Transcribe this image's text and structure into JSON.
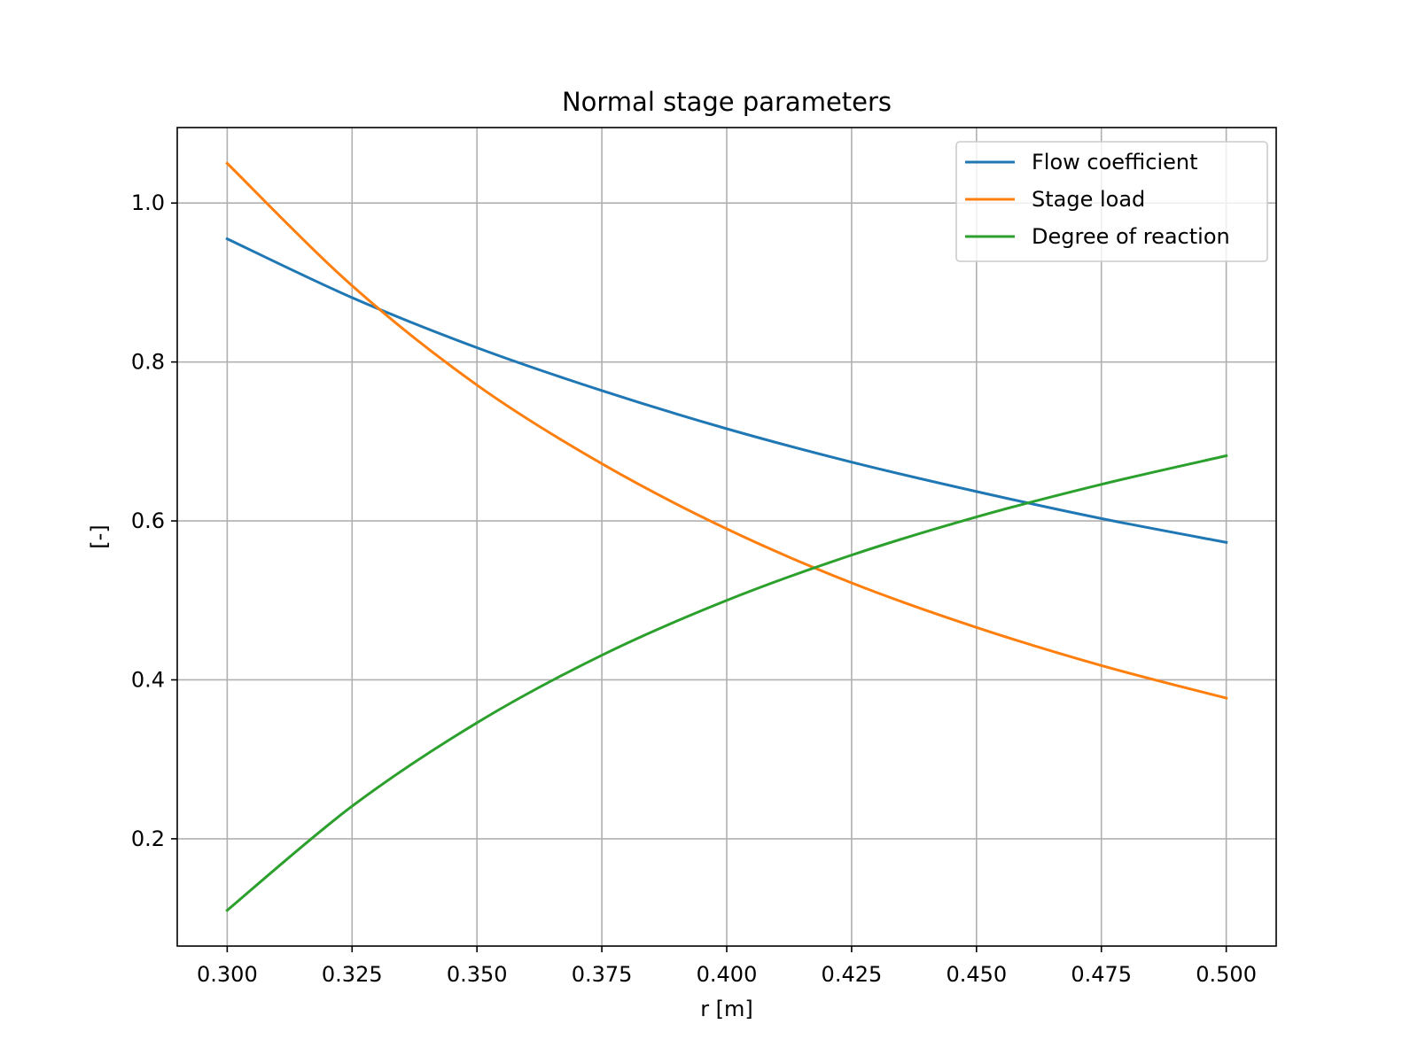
{
  "chart_data": {
    "type": "line",
    "title": "Normal stage parameters",
    "xlabel": "r [m]",
    "ylabel": "[-]",
    "xlim": [
      0.29,
      0.51
    ],
    "ylim": [
      0.065,
      1.095
    ],
    "xticks": [
      "0.300",
      "0.325",
      "0.350",
      "0.375",
      "0.400",
      "0.425",
      "0.450",
      "0.475",
      "0.500"
    ],
    "yticks": [
      "0.2",
      "0.4",
      "0.6",
      "0.8",
      "1.0"
    ],
    "grid": true,
    "legend": "top-right",
    "x": [
      0.3,
      0.325,
      0.35,
      0.375,
      0.4,
      0.425,
      0.45,
      0.475,
      0.5
    ],
    "series": [
      {
        "name": "Flow coefficient",
        "color": "#1f77b4",
        "values": [
          0.955,
          0.881,
          0.818,
          0.764,
          0.716,
          0.674,
          0.637,
          0.603,
          0.573
        ]
      },
      {
        "name": "Stage load",
        "color": "#ff7f0e",
        "values": [
          1.05,
          0.896,
          0.771,
          0.672,
          0.59,
          0.522,
          0.466,
          0.418,
          0.377
        ]
      },
      {
        "name": "Degree of reaction",
        "color": "#2ca02c",
        "values": [
          0.11,
          0.241,
          0.346,
          0.431,
          0.5,
          0.557,
          0.605,
          0.646,
          0.682
        ]
      }
    ]
  }
}
